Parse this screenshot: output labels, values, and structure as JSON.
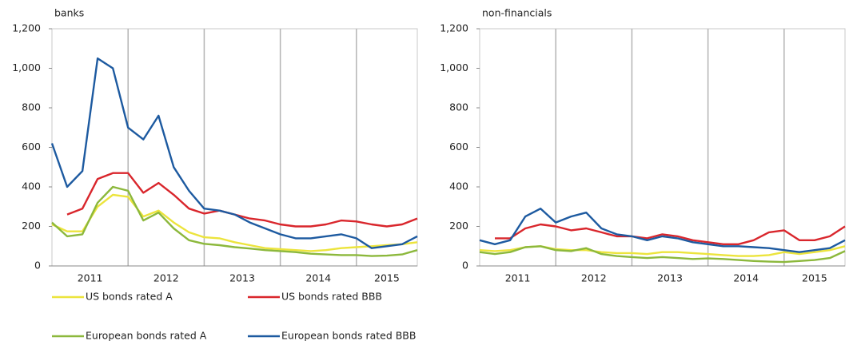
{
  "chart_data": [
    {
      "type": "line",
      "title": "banks",
      "x": [
        2011.0,
        2011.2,
        2011.4,
        2011.6,
        2011.8,
        2012.0,
        2012.2,
        2012.4,
        2012.6,
        2012.8,
        2013.0,
        2013.2,
        2013.4,
        2013.6,
        2013.8,
        2014.0,
        2014.2,
        2014.4,
        2014.6,
        2014.8,
        2015.0,
        2015.2,
        2015.4,
        2015.6,
        2015.8
      ],
      "xlim": [
        2011,
        2015.8
      ],
      "xticks": [
        {
          "value": 2011.5,
          "label": "2011"
        },
        {
          "value": 2012.5,
          "label": "2012"
        },
        {
          "value": 2013.5,
          "label": "2013"
        },
        {
          "value": 2014.5,
          "label": "2014"
        },
        {
          "value": 2015.4,
          "label": "2015"
        }
      ],
      "xgrid": [
        2012,
        2013,
        2014,
        2015
      ],
      "ylim": [
        0,
        1200
      ],
      "yticks": [
        0,
        200,
        400,
        600,
        800,
        {
          "value": 1000,
          "label": "1,000"
        },
        {
          "value": 1200,
          "label": "1,200"
        }
      ],
      "series": [
        {
          "name": "US bonds rated A",
          "color": "#ece43c",
          "values": [
            210,
            175,
            175,
            300,
            360,
            350,
            250,
            280,
            220,
            170,
            145,
            140,
            120,
            105,
            90,
            85,
            80,
            75,
            80,
            90,
            95,
            100,
            105,
            110,
            120
          ]
        },
        {
          "name": "US bonds rated BBB",
          "color": "#d9262c",
          "values": [
            null,
            260,
            290,
            440,
            470,
            470,
            370,
            420,
            360,
            290,
            265,
            280,
            260,
            240,
            230,
            210,
            200,
            200,
            210,
            230,
            225,
            210,
            200,
            210,
            240
          ]
        },
        {
          "name": "European bonds rated A",
          "color": "#8cb83c",
          "values": [
            220,
            150,
            160,
            320,
            400,
            380,
            230,
            270,
            190,
            130,
            112,
            105,
            95,
            88,
            80,
            75,
            70,
            62,
            58,
            55,
            55,
            50,
            52,
            58,
            80
          ]
        },
        {
          "name": "European bonds rated BBB",
          "color": "#1d5aa0",
          "values": [
            620,
            400,
            480,
            1050,
            1000,
            700,
            640,
            760,
            500,
            380,
            290,
            280,
            260,
            220,
            190,
            160,
            140,
            140,
            150,
            160,
            140,
            90,
            100,
            110,
            150
          ]
        }
      ]
    },
    {
      "type": "line",
      "title": "non-financials",
      "x": [
        2011.0,
        2011.2,
        2011.4,
        2011.6,
        2011.8,
        2012.0,
        2012.2,
        2012.4,
        2012.6,
        2012.8,
        2013.0,
        2013.2,
        2013.4,
        2013.6,
        2013.8,
        2014.0,
        2014.2,
        2014.4,
        2014.6,
        2014.8,
        2015.0,
        2015.2,
        2015.4,
        2015.6,
        2015.8
      ],
      "xlim": [
        2011,
        2015.8
      ],
      "xticks": [
        {
          "value": 2011.5,
          "label": "2011"
        },
        {
          "value": 2012.5,
          "label": "2012"
        },
        {
          "value": 2013.5,
          "label": "2013"
        },
        {
          "value": 2014.5,
          "label": "2014"
        },
        {
          "value": 2015.4,
          "label": "2015"
        }
      ],
      "xgrid": [
        2012,
        2013,
        2014,
        2015
      ],
      "ylim": [
        0,
        1200
      ],
      "yticks": [
        0,
        200,
        400,
        600,
        800,
        {
          "value": 1000,
          "label": "1,000"
        },
        {
          "value": 1200,
          "label": "1,200"
        }
      ],
      "series": [
        {
          "color": "#ece43c",
          "values": [
            80,
            75,
            80,
            95,
            100,
            85,
            80,
            80,
            70,
            65,
            65,
            60,
            70,
            70,
            65,
            60,
            55,
            50,
            50,
            55,
            70,
            60,
            70,
            80,
            100
          ]
        },
        {
          "color": "#d9262c",
          "values": [
            null,
            140,
            140,
            190,
            210,
            200,
            180,
            190,
            170,
            150,
            150,
            140,
            160,
            150,
            130,
            120,
            110,
            110,
            130,
            170,
            180,
            130,
            130,
            150,
            200
          ]
        },
        {
          "color": "#8cb83c",
          "values": [
            70,
            60,
            70,
            95,
            100,
            80,
            75,
            90,
            60,
            50,
            45,
            40,
            45,
            40,
            35,
            38,
            35,
            30,
            25,
            22,
            20,
            25,
            30,
            40,
            75
          ]
        },
        {
          "color": "#1d5aa0",
          "values": [
            130,
            110,
            130,
            250,
            290,
            220,
            250,
            270,
            190,
            160,
            150,
            130,
            150,
            140,
            120,
            110,
            100,
            100,
            95,
            90,
            80,
            70,
            80,
            90,
            130
          ]
        }
      ]
    }
  ]
}
